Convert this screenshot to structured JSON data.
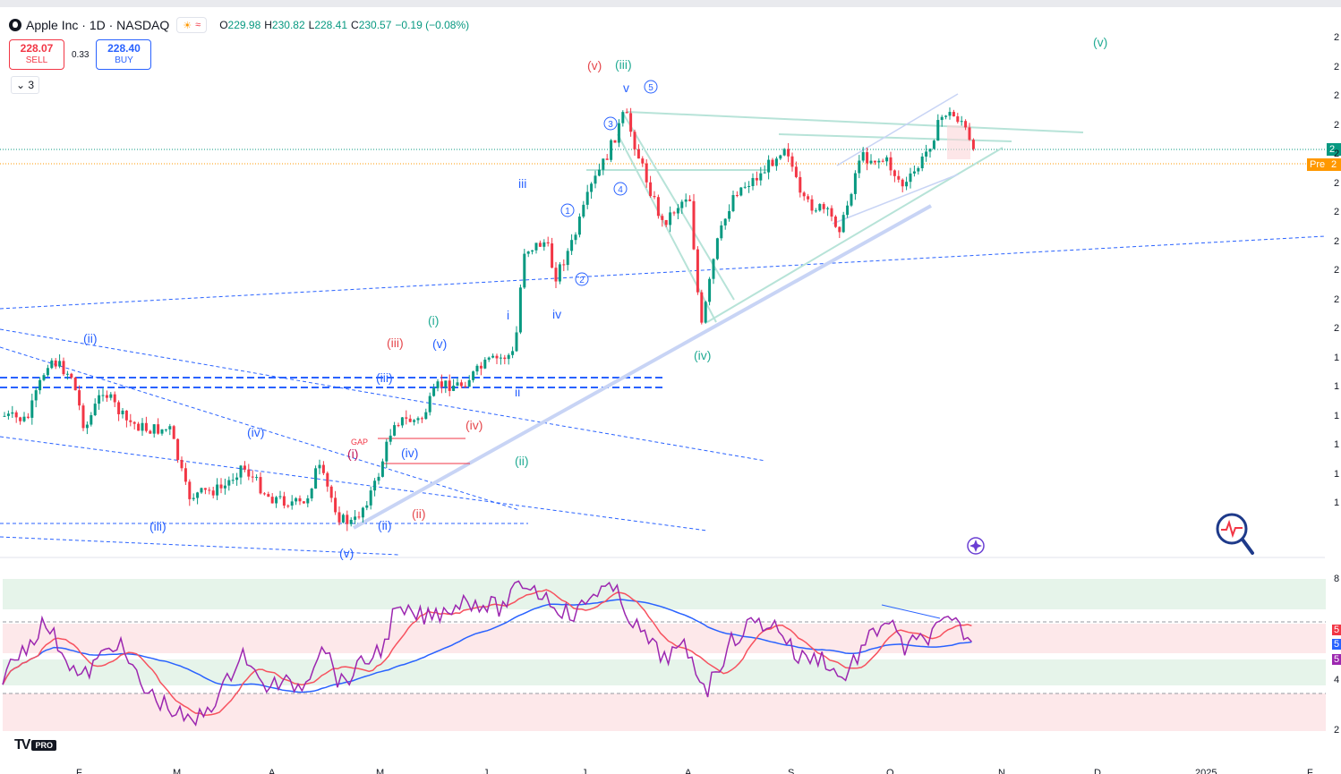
{
  "symbol": {
    "title": "Apple Inc · 1D · NASDAQ",
    "badge1": "☀",
    "badge2": "≈",
    "open_label": "O",
    "open": "229.98",
    "high_label": "H",
    "high": "230.82",
    "low_label": "L",
    "low": "228.41",
    "close_label": "C",
    "close": "230.57",
    "change": "−0.19 (−0.08%)"
  },
  "trade": {
    "sell_price": "228.07",
    "sell_label": "SELL",
    "spread": "0.33",
    "buy_price": "228.40",
    "buy_label": "BUY"
  },
  "legend_toggle": "⌄ 3",
  "price_axis": {
    "pre_label": "Pre",
    "labels": [
      "2",
      "2",
      "2",
      "2",
      "2",
      "2",
      "2",
      "2",
      "2",
      "2",
      "2",
      "1",
      "1",
      "1",
      "1",
      "1",
      "1"
    ],
    "rsi_labels": [
      "8",
      "5",
      "5",
      "5",
      "4",
      "2"
    ]
  },
  "annotations": {
    "gap": "GAP",
    "waves": {
      "ii_a": "(ii)",
      "iv_a": "(iv)",
      "iii_a": "(iii)",
      "v_a": "(v)",
      "i_b": "(i)",
      "iii_b": "(iii)",
      "ii_b": "(ii)",
      "iv_b": "(iv)",
      "iv_c": "(iv)",
      "iii_blue": "(iii)",
      "ii_blue": "(ii)",
      "v_blue": "(v)",
      "i_green": "(i)",
      "ii_green": "(ii)",
      "iii_green": "(iii)",
      "iv_green": "(iv)",
      "v_green": "(v)",
      "v_red": "(v)",
      "i_small": "i",
      "ii_small": "ii",
      "iii_small": "iii",
      "iv_small": "iv",
      "v_small": "v",
      "c1": "1",
      "c2": "2",
      "c3": "3",
      "c4": "4",
      "c5": "5"
    }
  },
  "time_axis": {
    "labels": [
      "F",
      "M",
      "A",
      "M",
      "J",
      "J",
      "A",
      "S",
      "O",
      "N",
      "D",
      "2025",
      "F"
    ]
  },
  "branding": {
    "logo": "TV",
    "plan": "PRO"
  },
  "colors": {
    "up": "#089981",
    "down": "#f23645",
    "wave_blue": "#2962ff",
    "wave_red": "#e5484d",
    "wave_green": "#22ab94",
    "rsi": "#9c27b0",
    "rsi_ma": "#f7525f",
    "rsi_slow": "#2962ff"
  },
  "chart_data": {
    "type": "candlestick",
    "title": "Apple Inc · 1D · NASDAQ",
    "xlabel": "",
    "ylabel": "",
    "x_tick_labels": [
      "F",
      "M",
      "A",
      "M",
      "J",
      "J",
      "A",
      "S",
      "O",
      "N",
      "D",
      "2025",
      "F"
    ],
    "last": {
      "open": 229.98,
      "high": 230.82,
      "low": 228.41,
      "close": 230.57,
      "change": -0.19,
      "change_pct": -0.08
    },
    "bid": 228.07,
    "ask": 228.4,
    "spread": 0.33
  }
}
